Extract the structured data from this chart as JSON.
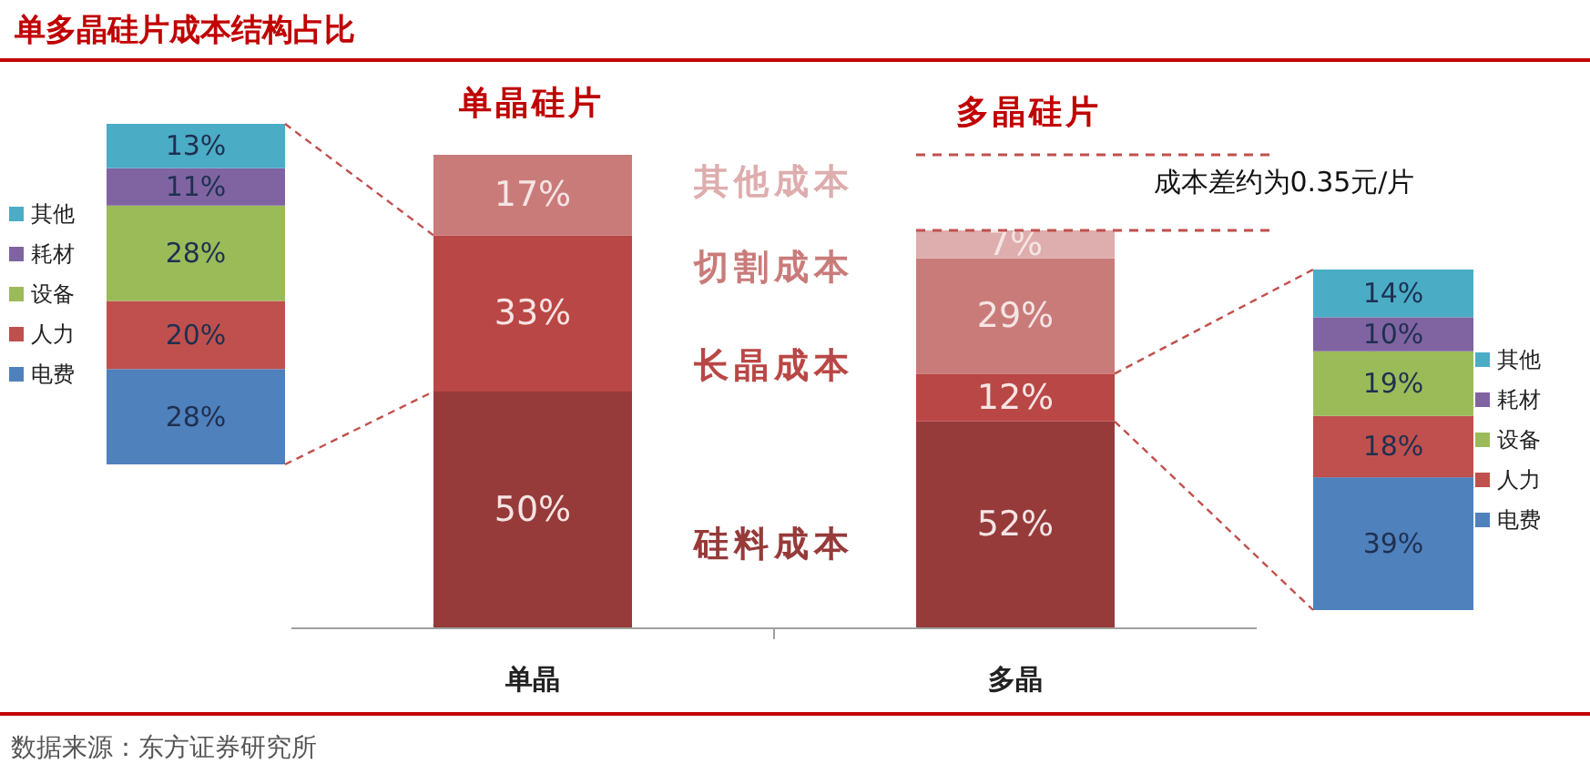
{
  "chart_data": [
    {
      "type": "bar",
      "stacked": true,
      "title": "单多晶硅片成本结构占比",
      "categories": [
        null
      ],
      "ylim": [
        0,
        100
      ],
      "legend": "left",
      "series": [
        {
          "name": "电费",
          "color": "#4f81bd",
          "values": [
            28
          ],
          "value_labels": [
            "28%"
          ]
        },
        {
          "name": "人力",
          "color": "#c0504d",
          "values": [
            20
          ],
          "value_labels": [
            "20%"
          ]
        },
        {
          "name": "设备",
          "color": "#9bbb59",
          "values": [
            28
          ],
          "value_labels": [
            "28%"
          ]
        },
        {
          "name": "耗材",
          "color": "#8064a2",
          "values": [
            11
          ],
          "value_labels": [
            "11%"
          ]
        },
        {
          "name": "其他",
          "color": "#4bacc6",
          "values": [
            13
          ],
          "value_labels": [
            "13%"
          ]
        }
      ],
      "annotations": [
        "数据来源：东方证券研究所"
      ]
    },
    {
      "type": "bar",
      "stacked": true,
      "categories": [
        "单晶"
      ],
      "ylim": [
        0,
        100
      ],
      "legend": false,
      "series": [
        {
          "name": "硅料成本",
          "color": "#963a3a",
          "values": [
            50
          ],
          "value_labels": [
            "50%"
          ]
        },
        {
          "name": "长晶成本",
          "color": "#b94745",
          "values": [
            33
          ],
          "value_labels": [
            "33%"
          ]
        },
        {
          "name": "切割成本",
          "color": "#c97b7a",
          "values": [
            17
          ],
          "value_labels": [
            "17%"
          ]
        },
        {
          "name": "其他成本",
          "color": "#deadad",
          "values": [
            null
          ],
          "value_labels": [
            null
          ]
        }
      ],
      "annotations": [
        "单晶硅片"
      ]
    },
    {
      "type": "bar",
      "stacked": true,
      "categories": [
        "多晶"
      ],
      "ylim": [
        0,
        119
      ],
      "legend": false,
      "series": [
        {
          "color": "#963a3a",
          "values": [
            52
          ],
          "value_labels": [
            "52%"
          ]
        },
        {
          "color": "#b94745",
          "values": [
            12
          ],
          "value_labels": [
            "12%"
          ]
        },
        {
          "color": "#c97b7a",
          "values": [
            29
          ],
          "value_labels": [
            "29%"
          ]
        },
        {
          "color": "#deadad",
          "values": [
            7
          ],
          "value_labels": [
            "7%"
          ]
        }
      ],
      "ref_lines": [
        {
          "axis": "y",
          "value": 119,
          "color": "#c0504d",
          "line_style": "dashed"
        },
        {
          "axis": "y",
          "value": 100,
          "color": "#c0504d",
          "line_style": "dashed"
        }
      ],
      "annotations": [
        "多晶硅片",
        "成本差约为0.35元/片"
      ]
    },
    {
      "type": "bar",
      "stacked": true,
      "categories": [
        null
      ],
      "ylim": [
        0,
        100
      ],
      "legend": "right",
      "series": [
        {
          "name": "电费",
          "color": "#4f81bd",
          "values": [
            39
          ],
          "value_labels": [
            "39%"
          ]
        },
        {
          "name": "人力",
          "color": "#c0504d",
          "values": [
            18
          ],
          "value_labels": [
            "18%"
          ]
        },
        {
          "name": "设备",
          "color": "#9bbb59",
          "values": [
            19
          ],
          "value_labels": [
            "19%"
          ]
        },
        {
          "name": "耗材",
          "color": "#8064a2",
          "values": [
            10
          ],
          "value_labels": [
            "10%"
          ]
        },
        {
          "name": "其他",
          "color": "#4bacc6",
          "values": [
            14
          ],
          "value_labels": [
            "14%"
          ]
        }
      ]
    }
  ]
}
